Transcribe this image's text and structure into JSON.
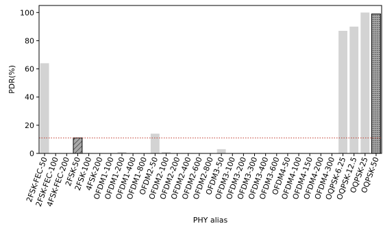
{
  "chart_data": {
    "type": "bar",
    "xlabel": "PHY alias",
    "ylabel": "PDR(%)",
    "ylim": [
      0,
      105
    ],
    "yticks": [
      0,
      20,
      40,
      60,
      80,
      100
    ],
    "grid": false,
    "categories": [
      "2FSK-FEC-50",
      "2FSK-FEC-100",
      "4FSK-FEC-200",
      "2FSK-50",
      "2FSK-100",
      "4FSK-200",
      "OFDM1-100",
      "OFDM1-200",
      "OFDM1-400",
      "OFDM1-800",
      "OFDM2-50",
      "OFDM2-100",
      "OFDM2-200",
      "OFDM2-400",
      "OFDM2-600",
      "OFDM2-800",
      "OFDM3-50",
      "OFDM3-100",
      "OFDM3-200",
      "OFDM3-300",
      "OFDM3-400",
      "OFDM3-600",
      "OFDM4-50",
      "OFDM4-100",
      "OFDM4-150",
      "OFDM4-200",
      "OFDM4-300",
      "OQPSK-6.25",
      "OQPSK-12.5",
      "OQPSK-25",
      "OQPSK-50"
    ],
    "values": [
      64,
      0,
      0,
      11,
      0,
      0,
      0,
      1,
      0,
      0,
      14,
      1,
      0,
      0,
      0,
      0,
      3,
      0,
      0,
      0,
      0,
      0,
      0,
      0,
      0,
      0,
      0,
      87,
      90,
      100,
      99
    ],
    "highlighted": {
      "2FSK-50": "diagonal-hatch",
      "OQPSK-50": "dot-hatch"
    },
    "reference_line": {
      "y": 11,
      "style": "dotted",
      "color": "#c0392b"
    },
    "colors": {
      "bar": "#d3d3d3",
      "highlight": "#a9a9a9",
      "edge": "#000000",
      "reference": "#c0392b"
    }
  }
}
